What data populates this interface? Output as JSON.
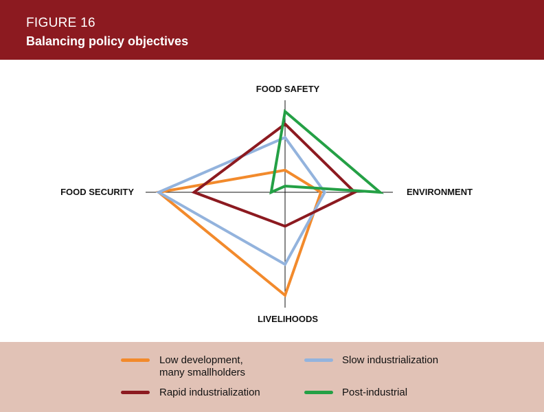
{
  "header": {
    "figure_number": "FIGURE 16",
    "title": "Balancing policy objectives"
  },
  "colors": {
    "header_bg": "#8c1a20",
    "legend_bg": "#e1c2b6"
  },
  "chart_data": {
    "type": "radar",
    "axes": [
      "FOOD SAFETY",
      "ENVIRONMENT",
      "LIVELIHOODS",
      "FOOD SECURITY"
    ],
    "range": [
      -1,
      1
    ],
    "grid": false,
    "legend": "bottom",
    "series": [
      {
        "name": "Low development, many smallholders",
        "color": "#f28a2c",
        "values": [
          0.23,
          0.37,
          1.0,
          1.0
        ]
      },
      {
        "name": "Slow industrialization",
        "color": "#93b3dd",
        "values": [
          0.57,
          0.41,
          0.7,
          1.0
        ]
      },
      {
        "name": "Rapid industrialization",
        "color": "#8c1a20",
        "values": [
          0.71,
          0.72,
          0.33,
          0.72
        ]
      },
      {
        "name": "Post-industrial",
        "color": "#24a045",
        "values": [
          0.84,
          0.98,
          -0.06,
          0.11
        ]
      }
    ]
  }
}
